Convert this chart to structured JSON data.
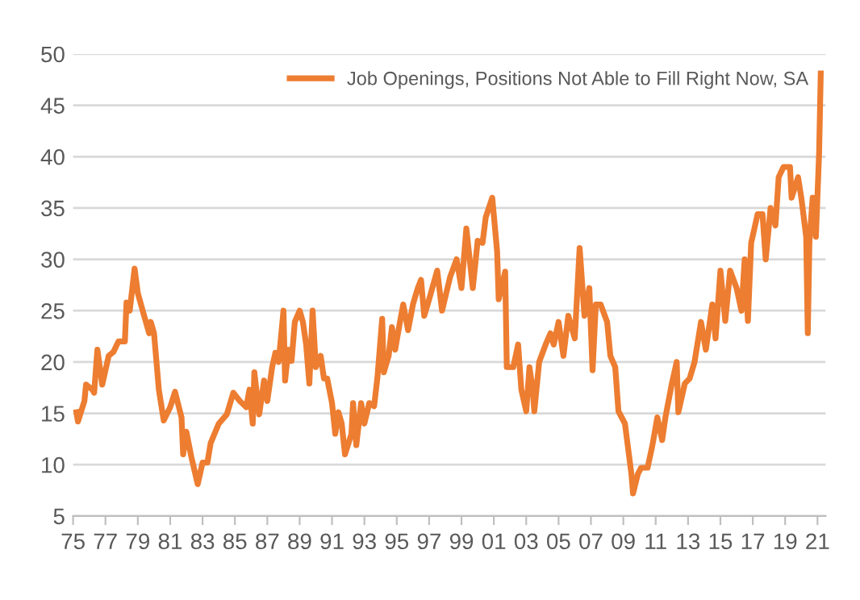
{
  "chart_data": {
    "type": "line",
    "x": [
      1975.2,
      1975.3,
      1975.7,
      1975.8,
      1976.2,
      1976.3,
      1976.5,
      1976.8,
      1977.2,
      1977.5,
      1977.8,
      1978.2,
      1978.3,
      1978.5,
      1978.8,
      1979,
      1979.3,
      1979.7,
      1979.8,
      1980,
      1980.3,
      1980.6,
      1981,
      1981.3,
      1981.7,
      1981.8,
      1982,
      1982.3,
      1982.7,
      1983,
      1983.3,
      1983.5,
      1984,
      1984.5,
      1984.9,
      1985.3,
      1985.7,
      1985.9,
      1986.1,
      1986.2,
      1986.5,
      1986.8,
      1987,
      1987.3,
      1987.5,
      1987.7,
      1988,
      1988.1,
      1988.3,
      1988.5,
      1988.7,
      1989,
      1989.2,
      1989.4,
      1989.6,
      1989.8,
      1990,
      1990.3,
      1990.5,
      1990.7,
      1991,
      1991.2,
      1991.4,
      1991.6,
      1991.8,
      1992.2,
      1992.3,
      1992.5,
      1992.8,
      1993,
      1993.3,
      1993.6,
      1993.8,
      1994.1,
      1994.2,
      1994.5,
      1994.7,
      1994.9,
      1995.2,
      1995.4,
      1995.7,
      1996,
      1996.3,
      1996.5,
      1996.7,
      1997,
      1997.5,
      1997.8,
      1998.3,
      1998.7,
      1999,
      1999.3,
      1999.7,
      2000,
      2000.3,
      2000.5,
      2000.9,
      2001.2,
      2001.3,
      2001.7,
      2001.8,
      2002.2,
      2002.5,
      2002.7,
      2003,
      2003.2,
      2003.4,
      2003.5,
      2003.8,
      2004.2,
      2004.5,
      2004.7,
      2005,
      2005.3,
      2005.6,
      2006,
      2006.3,
      2006.6,
      2006.9,
      2007.1,
      2007.3,
      2007.6,
      2008,
      2008.2,
      2008.5,
      2008.7,
      2009.1,
      2009.5,
      2009.6,
      2009.9,
      2010.1,
      2010.5,
      2010.8,
      2011.1,
      2011.4,
      2011.6,
      2012,
      2012.3,
      2012.4,
      2012.8,
      2013.1,
      2013.4,
      2013.8,
      2014.1,
      2014.5,
      2014.7,
      2015,
      2015.3,
      2015.6,
      2016,
      2016.3,
      2016.5,
      2016.7,
      2016.9,
      2017.3,
      2017.6,
      2017.8,
      2018.1,
      2018.4,
      2018.6,
      2018.9,
      2019.3,
      2019.4,
      2019.8,
      2020,
      2020.3,
      2020.4,
      2020.5,
      2020.7,
      2020.9,
      2021.1,
      2021.2
    ],
    "series": [
      {
        "name": "Job Openings, Positions Not Able to Fill Right Now, SA",
        "color": "#ed7d31",
        "values": [
          15.1,
          14.2,
          16.2,
          17.8,
          17.3,
          17.0,
          21.2,
          17.8,
          20.6,
          21,
          22,
          22,
          25.8,
          25,
          29.1,
          26.7,
          25,
          22.8,
          23.9,
          22.8,
          17.3,
          14.3,
          15.6,
          17.1,
          14.6,
          11,
          13.2,
          10.8,
          8.1,
          10.2,
          10.2,
          12.1,
          14,
          14.9,
          17,
          16.2,
          15.6,
          17.3,
          14,
          19,
          14.9,
          18.2,
          16.2,
          19.5,
          20.9,
          20,
          25,
          18.2,
          21.2,
          20.1,
          23.9,
          25,
          23.9,
          21.7,
          17.9,
          25,
          19.5,
          20.6,
          18.4,
          18.4,
          16,
          13,
          15.1,
          14,
          11,
          13,
          16,
          11.9,
          16,
          14,
          16,
          15.7,
          18.4,
          24.2,
          19,
          20.6,
          23.4,
          21.2,
          23.9,
          25.6,
          23.1,
          25.6,
          27.2,
          28,
          24.5,
          26.1,
          28.9,
          25,
          28.3,
          30,
          27.2,
          33,
          27.2,
          31.8,
          31.6,
          34.1,
          36,
          30.8,
          26.1,
          28.8,
          19.5,
          19.5,
          21.7,
          17.3,
          15.2,
          19.5,
          17.3,
          15.2,
          20,
          21.7,
          22.8,
          21.7,
          23.9,
          20.6,
          24.5,
          22.3,
          31.1,
          24.5,
          27.2,
          19.2,
          25.6,
          25.6,
          23.9,
          20.6,
          19.5,
          15.2,
          14,
          9.1,
          7.2,
          9.1,
          9.7,
          9.7,
          11.9,
          14.6,
          12.4,
          14.6,
          17.9,
          20,
          15.1,
          17.9,
          18.4,
          20,
          23.9,
          21.2,
          25.6,
          22.3,
          28.9,
          24,
          28.9,
          27.2,
          25,
          30,
          24,
          31.6,
          34.4,
          34.4,
          30,
          35,
          33.3,
          38,
          39,
          39,
          36,
          38,
          36,
          32.2,
          22.8,
          31.7,
          36,
          32.2,
          40.4,
          48.1
        ]
      }
    ],
    "xlim": [
      1975,
      2021.5
    ],
    "xticks": [
      {
        "value": 1975,
        "label": "75"
      },
      {
        "value": 1977,
        "label": "77"
      },
      {
        "value": 1979,
        "label": "79"
      },
      {
        "value": 1981,
        "label": "81"
      },
      {
        "value": 1983,
        "label": "83"
      },
      {
        "value": 1985,
        "label": "85"
      },
      {
        "value": 1987,
        "label": "87"
      },
      {
        "value": 1989,
        "label": "89"
      },
      {
        "value": 1991,
        "label": "91"
      },
      {
        "value": 1993,
        "label": "93"
      },
      {
        "value": 1995,
        "label": "95"
      },
      {
        "value": 1997,
        "label": "97"
      },
      {
        "value": 1999,
        "label": "99"
      },
      {
        "value": 2001,
        "label": "01"
      },
      {
        "value": 2003,
        "label": "03"
      },
      {
        "value": 2005,
        "label": "05"
      },
      {
        "value": 2007,
        "label": "07"
      },
      {
        "value": 2009,
        "label": "09"
      },
      {
        "value": 2011,
        "label": "11"
      },
      {
        "value": 2013,
        "label": "13"
      },
      {
        "value": 2015,
        "label": "15"
      },
      {
        "value": 2017,
        "label": "17"
      },
      {
        "value": 2019,
        "label": "19"
      },
      {
        "value": 2021,
        "label": "21"
      }
    ],
    "ylim": [
      5,
      50
    ],
    "yticks": [
      5,
      10,
      15,
      20,
      25,
      30,
      35,
      40,
      45,
      50
    ],
    "grid": "y",
    "legend": "top right",
    "line_style": "solid",
    "marker": "none"
  }
}
